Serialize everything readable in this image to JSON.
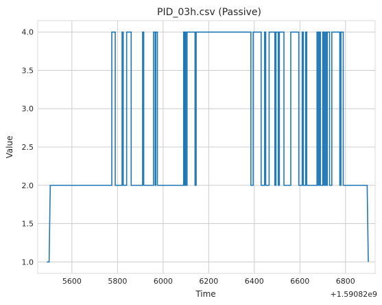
{
  "chart_data": {
    "type": "line",
    "title": "PID_03h.csv (Passive)",
    "xlabel": "Time",
    "ylabel": "Value",
    "x_offset_label": "+1.59082e9",
    "xlim": [
      5450,
      6930
    ],
    "ylim": [
      0.85,
      4.15
    ],
    "x_ticks": [
      5600,
      5800,
      6000,
      6200,
      6400,
      6600,
      6800
    ],
    "y_ticks": [
      1.0,
      1.5,
      2.0,
      2.5,
      3.0,
      3.5,
      4.0
    ],
    "x_tick_labels": [
      "5600",
      "5800",
      "6000",
      "6200",
      "6400",
      "6600",
      "6800"
    ],
    "y_tick_labels": [
      "1.0",
      "1.5",
      "2.0",
      "2.5",
      "3.0",
      "3.5",
      "4.0"
    ],
    "grid": true,
    "color": "#1f77b4",
    "series": [
      {
        "x": [
          5490,
          5500,
          5505,
          5775,
          5775,
          5790,
          5790,
          5820,
          5820,
          5825,
          5825,
          5840,
          5840,
          5860,
          5860,
          5910,
          5910,
          5915,
          5915,
          5958,
          5958,
          5965,
          5965,
          5968,
          5968,
          5975,
          5975,
          6090,
          6090,
          6093,
          6093,
          6097,
          6097,
          6100,
          6100,
          6105,
          6105,
          6140,
          6140,
          6145,
          6145,
          6385,
          6385,
          6395,
          6395,
          6430,
          6430,
          6445,
          6445,
          6450,
          6450,
          6465,
          6465,
          6490,
          6490,
          6495,
          6495,
          6505,
          6505,
          6510,
          6510,
          6530,
          6530,
          6560,
          6560,
          6595,
          6595,
          6610,
          6610,
          6615,
          6615,
          6625,
          6625,
          6630,
          6630,
          6675,
          6675,
          6680,
          6680,
          6685,
          6685,
          6690,
          6690,
          6700,
          6700,
          6705,
          6705,
          6710,
          6710,
          6715,
          6715,
          6720,
          6720,
          6730,
          6730,
          6740,
          6740,
          6775,
          6775,
          6780,
          6780,
          6790,
          6790,
          6895,
          6900
        ],
        "y": [
          1.0,
          1.0,
          2.0,
          2.0,
          4.0,
          4.0,
          2.0,
          2.0,
          4.0,
          4.0,
          2.0,
          2.0,
          4.0,
          4.0,
          2.0,
          2.0,
          4.0,
          4.0,
          2.0,
          2.0,
          4.0,
          4.0,
          2.0,
          2.0,
          4.0,
          4.0,
          2.0,
          2.0,
          4.0,
          4.0,
          2.0,
          2.0,
          4.0,
          4.0,
          2.0,
          2.0,
          4.0,
          4.0,
          2.0,
          2.0,
          4.0,
          4.0,
          2.0,
          2.0,
          4.0,
          4.0,
          2.0,
          2.0,
          4.0,
          4.0,
          2.0,
          2.0,
          4.0,
          4.0,
          2.0,
          2.0,
          4.0,
          4.0,
          2.0,
          2.0,
          4.0,
          4.0,
          2.0,
          2.0,
          4.0,
          4.0,
          2.0,
          2.0,
          4.0,
          4.0,
          2.0,
          2.0,
          4.0,
          4.0,
          2.0,
          2.0,
          4.0,
          4.0,
          2.0,
          2.0,
          4.0,
          4.0,
          2.0,
          2.0,
          4.0,
          4.0,
          2.0,
          2.0,
          4.0,
          4.0,
          2.0,
          2.0,
          4.0,
          4.0,
          2.0,
          2.0,
          4.0,
          4.0,
          2.0,
          2.0,
          4.0,
          4.0,
          2.0,
          2.0,
          1.0
        ]
      }
    ]
  }
}
